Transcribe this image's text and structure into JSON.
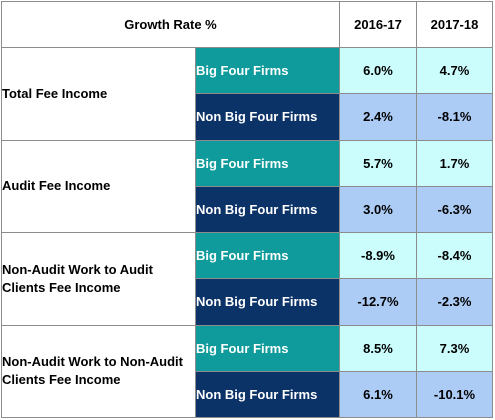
{
  "chart_data": {
    "type": "table",
    "corner_header": "Growth Rate %",
    "columns": [
      "2016-17",
      "2017-18"
    ],
    "groups": [
      {
        "category": "Total Fee Income",
        "rows": [
          {
            "firm": "Big Four Firms",
            "kind": "big",
            "values": [
              "6.0%",
              "4.7%"
            ]
          },
          {
            "firm": "Non Big Four Firms",
            "kind": "nonbig",
            "values": [
              "2.4%",
              "-8.1%"
            ]
          }
        ]
      },
      {
        "category": "Audit Fee Income",
        "rows": [
          {
            "firm": "Big Four Firms",
            "kind": "big",
            "values": [
              "5.7%",
              "1.7%"
            ]
          },
          {
            "firm": "Non Big Four Firms",
            "kind": "nonbig",
            "values": [
              "3.0%",
              "-6.3%"
            ]
          }
        ]
      },
      {
        "category": "Non-Audit Work to Audit Clients Fee Income",
        "rows": [
          {
            "firm": "Big Four Firms",
            "kind": "big",
            "values": [
              "-8.9%",
              "-8.4%"
            ]
          },
          {
            "firm": "Non Big Four Firms",
            "kind": "nonbig",
            "values": [
              "-12.7%",
              "-2.3%"
            ]
          }
        ]
      },
      {
        "category": "Non-Audit Work to Non-Audit Clients Fee Income",
        "rows": [
          {
            "firm": "Big Four Firms",
            "kind": "big",
            "values": [
              "8.5%",
              "7.3%"
            ]
          },
          {
            "firm": "Non Big Four Firms",
            "kind": "nonbig",
            "values": [
              "6.1%",
              "-10.1%"
            ]
          }
        ]
      }
    ],
    "colors": {
      "big_firm_label_bg": "#0f9b9b",
      "nonbig_firm_label_bg": "#0c3368",
      "big_value_bg": "#ccfdfd",
      "nonbig_value_bg": "#acccf6",
      "border": "#8c8c8c"
    }
  }
}
